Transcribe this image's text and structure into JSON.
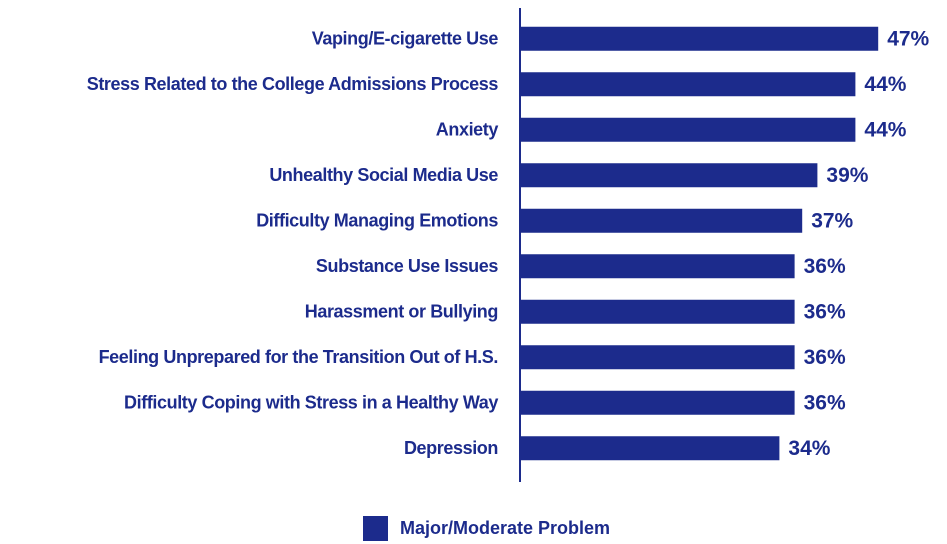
{
  "chart_data": {
    "type": "bar",
    "orientation": "horizontal",
    "categories": [
      "Vaping/E-cigarette Use",
      "Stress Related to the College Admissions Process",
      "Anxiety",
      "Unhealthy Social Media Use",
      "Difficulty Managing Emotions",
      "Substance Use Issues",
      "Harassment or Bullying",
      "Feeling Unprepared for the Transition Out of H.S.",
      "Difficulty Coping with Stress in a Healthy Way",
      "Depression"
    ],
    "series": [
      {
        "name": "Major/Moderate Problem",
        "color": "#1c2b8c",
        "values": [
          47,
          44,
          44,
          39,
          37,
          36,
          36,
          36,
          36,
          34
        ],
        "value_labels": [
          "47%",
          "44%",
          "44%",
          "39%",
          "37%",
          "36%",
          "36%",
          "36%",
          "36%",
          "34%"
        ]
      }
    ],
    "xlim": [
      0,
      50
    ],
    "grid": false,
    "legend": "bottom"
  }
}
